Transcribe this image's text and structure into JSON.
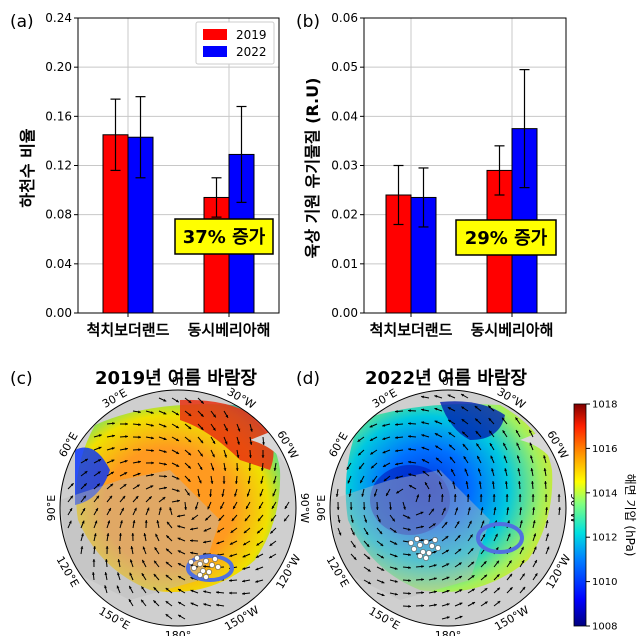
{
  "chart_data": [
    {
      "type": "bar",
      "panel": "(a)",
      "ylabel": "하천수 비율",
      "categories": [
        "척치보더랜드",
        "동시베리아해"
      ],
      "ylim": [
        0,
        0.24
      ],
      "yticks": [
        "0.00",
        "0.04",
        "0.08",
        "0.12",
        "0.16",
        "0.20",
        "0.24"
      ],
      "series": [
        {
          "name": "2019",
          "color": "#ff0000",
          "values": [
            0.145,
            0.094
          ],
          "err": [
            0.029,
            0.016
          ]
        },
        {
          "name": "2022",
          "color": "#0000ff",
          "values": [
            0.143,
            0.129
          ],
          "err": [
            0.033,
            0.039
          ]
        }
      ],
      "legend": [
        "2019",
        "2022"
      ],
      "annotation": "37% 증가"
    },
    {
      "type": "bar",
      "panel": "(b)",
      "ylabel": "육상 기원 유기물질 (R.U)",
      "categories": [
        "척치보더랜드",
        "동시베리아해"
      ],
      "ylim": [
        0,
        0.06
      ],
      "yticks": [
        "0.00",
        "0.01",
        "0.02",
        "0.03",
        "0.04",
        "0.05",
        "0.06"
      ],
      "series": [
        {
          "name": "2019",
          "color": "#ff0000",
          "values": [
            0.024,
            0.029
          ],
          "err": [
            0.006,
            0.005
          ]
        },
        {
          "name": "2022",
          "color": "#0000ff",
          "values": [
            0.0235,
            0.0375
          ],
          "err": [
            0.006,
            0.012
          ]
        }
      ],
      "annotation": "29% 증가"
    },
    {
      "type": "heatmap",
      "panel": "(c)",
      "title": "2019년 여름 바람장",
      "lon_labels": [
        "0°",
        "30°W",
        "60°W",
        "90°W",
        "120°W",
        "150°W",
        "180°",
        "150°E",
        "120°E",
        "90°E",
        "60°E",
        "30°E"
      ]
    },
    {
      "type": "heatmap",
      "panel": "(d)",
      "title": "2022년 여름 바람장",
      "lon_labels": [
        "0°",
        "30°W",
        "60°W",
        "90°W",
        "120°W",
        "150°W",
        "180°",
        "150°E",
        "120°E",
        "90°E",
        "60°E",
        "30°E"
      ],
      "colorbar": {
        "label": "해면 기압 (hPa)",
        "ticks": [
          "1008",
          "1010",
          "1012",
          "1014",
          "1016",
          "1018"
        ],
        "range": [
          1008,
          1018
        ]
      }
    }
  ]
}
